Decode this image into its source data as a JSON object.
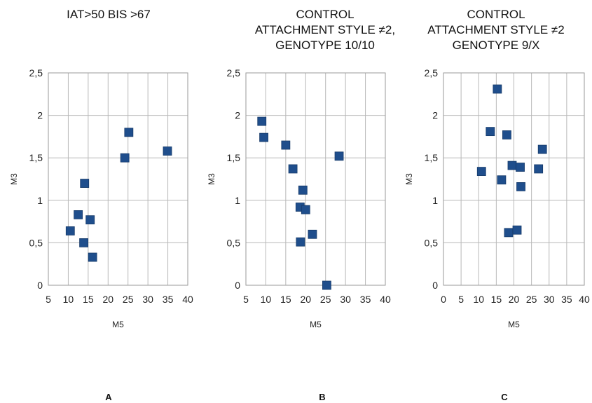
{
  "chart_data": [
    {
      "type": "scatter",
      "panel_letter": "A",
      "title": [
        "IAT>50 BIS >67"
      ],
      "xlabel": "M5",
      "ylabel": "M3",
      "xlim": [
        5,
        40
      ],
      "ylim": [
        0,
        2.5
      ],
      "x_ticks": [
        "5",
        "10",
        "15",
        "20",
        "25",
        "30",
        "35",
        "40"
      ],
      "y_ticks": [
        "0",
        "0,5",
        "1",
        "1,5",
        "2",
        "2,5"
      ],
      "grid": true,
      "points": [
        {
          "x": 10.5,
          "y": 0.64
        },
        {
          "x": 12.5,
          "y": 0.83
        },
        {
          "x": 13.9,
          "y": 0.5
        },
        {
          "x": 14.1,
          "y": 1.2
        },
        {
          "x": 15.5,
          "y": 0.77
        },
        {
          "x": 16.1,
          "y": 0.33
        },
        {
          "x": 24.2,
          "y": 1.5
        },
        {
          "x": 25.2,
          "y": 1.8
        },
        {
          "x": 34.9,
          "y": 1.58
        }
      ]
    },
    {
      "type": "scatter",
      "panel_letter": "B",
      "title": [
        "CONTROL",
        "ATTACHMENT STYLE ≠2,",
        "GENOTYPE 10/10"
      ],
      "xlabel": "M5",
      "ylabel": "M3",
      "xlim": [
        5,
        40
      ],
      "ylim": [
        0,
        2.5
      ],
      "x_ticks": [
        "5",
        "10",
        "15",
        "20",
        "25",
        "30",
        "35",
        "40"
      ],
      "y_ticks": [
        "0",
        "0,5",
        "1",
        "1,5",
        "2",
        "2,5"
      ],
      "grid": true,
      "points": [
        {
          "x": 9.0,
          "y": 1.93
        },
        {
          "x": 9.5,
          "y": 1.74
        },
        {
          "x": 15.0,
          "y": 1.65
        },
        {
          "x": 16.8,
          "y": 1.37
        },
        {
          "x": 18.6,
          "y": 0.92
        },
        {
          "x": 18.7,
          "y": 0.51
        },
        {
          "x": 19.3,
          "y": 1.12
        },
        {
          "x": 20.0,
          "y": 0.89
        },
        {
          "x": 21.7,
          "y": 0.6
        },
        {
          "x": 25.3,
          "y": 0.0
        },
        {
          "x": 28.4,
          "y": 1.52
        }
      ]
    },
    {
      "type": "scatter",
      "panel_letter": "C",
      "title": [
        "CONTROL",
        "ATTACHMENT STYLE ≠2",
        "GENOTYPE 9/X"
      ],
      "xlabel": "M5",
      "ylabel": "M3",
      "xlim": [
        0,
        40
      ],
      "ylim": [
        0,
        2.5
      ],
      "x_ticks": [
        "0",
        "5",
        "10",
        "15",
        "20",
        "25",
        "30",
        "35",
        "40"
      ],
      "y_ticks": [
        "0",
        "0,5",
        "1",
        "1,5",
        "2",
        "2,5"
      ],
      "grid": true,
      "points": [
        {
          "x": 10.8,
          "y": 1.34
        },
        {
          "x": 13.3,
          "y": 1.81
        },
        {
          "x": 15.3,
          "y": 2.31
        },
        {
          "x": 16.5,
          "y": 1.24
        },
        {
          "x": 18.0,
          "y": 1.77
        },
        {
          "x": 18.5,
          "y": 0.62
        },
        {
          "x": 19.5,
          "y": 1.41
        },
        {
          "x": 20.9,
          "y": 0.65
        },
        {
          "x": 21.8,
          "y": 1.39
        },
        {
          "x": 22.0,
          "y": 1.16
        },
        {
          "x": 27.0,
          "y": 1.37
        },
        {
          "x": 28.1,
          "y": 1.6
        }
      ]
    }
  ]
}
